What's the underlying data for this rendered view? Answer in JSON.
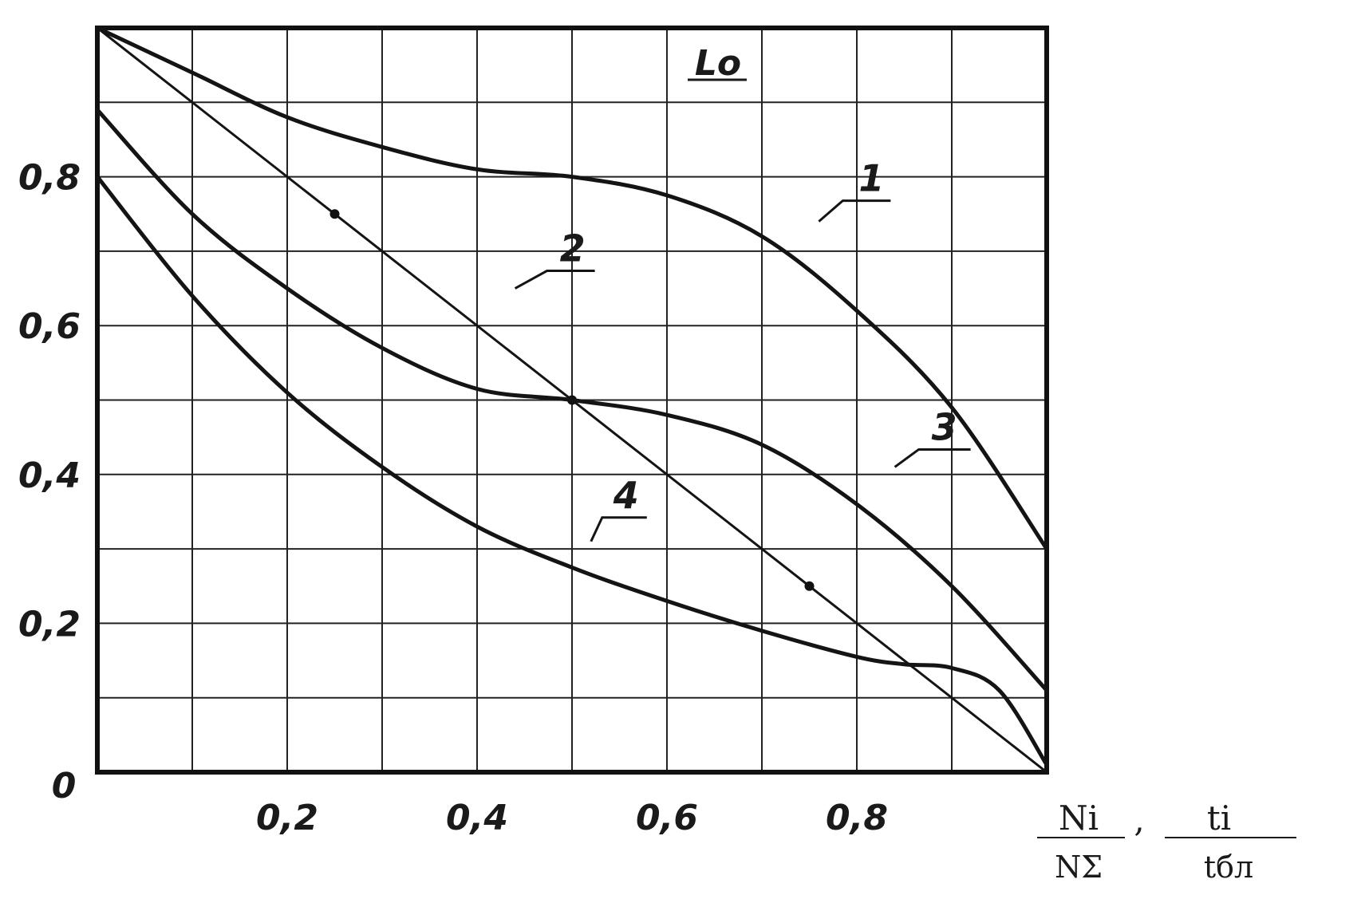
{
  "chart_data": {
    "type": "line",
    "title": "",
    "corner_label": "Lo",
    "xlabel": {
      "numerator_1": "Ni",
      "denominator_1": "NΣ",
      "separator": ",",
      "numerator_2": "ti",
      "denominator_2": "tбл"
    },
    "ylabel": "",
    "xlim": [
      0,
      1
    ],
    "ylim": [
      0,
      1
    ],
    "grid": true,
    "x_ticks": [
      {
        "value": 0.2,
        "label": "0,2"
      },
      {
        "value": 0.4,
        "label": "0,4"
      },
      {
        "value": 0.6,
        "label": "0,6"
      },
      {
        "value": 0.8,
        "label": "0,8"
      }
    ],
    "y_ticks": [
      {
        "value": 0,
        "label": "0"
      },
      {
        "value": 0.2,
        "label": "0,2"
      },
      {
        "value": 0.4,
        "label": "0,4"
      },
      {
        "value": 0.6,
        "label": "0,6"
      },
      {
        "value": 0.8,
        "label": "0,8"
      }
    ],
    "series": [
      {
        "name": "1",
        "x": [
          0,
          0.1,
          0.2,
          0.3,
          0.4,
          0.5,
          0.6,
          0.7,
          0.8,
          0.9,
          1.0
        ],
        "y": [
          1.0,
          0.94,
          0.88,
          0.84,
          0.81,
          0.8,
          0.775,
          0.72,
          0.62,
          0.49,
          0.3
        ],
        "label_at": {
          "x": 0.76,
          "y": 0.74
        }
      },
      {
        "name": "2",
        "x": [
          0,
          0.25,
          0.5,
          0.75,
          1.0
        ],
        "y": [
          1.0,
          0.75,
          0.5,
          0.25,
          0.0
        ],
        "markers": [
          {
            "x": 0.25,
            "y": 0.75
          },
          {
            "x": 0.5,
            "y": 0.5
          },
          {
            "x": 0.75,
            "y": 0.25
          }
        ],
        "label_at": {
          "x": 0.44,
          "y": 0.65
        }
      },
      {
        "name": "3",
        "x": [
          0,
          0.1,
          0.2,
          0.3,
          0.4,
          0.5,
          0.6,
          0.7,
          0.8,
          0.9,
          1.0
        ],
        "y": [
          0.89,
          0.75,
          0.65,
          0.57,
          0.515,
          0.5,
          0.48,
          0.44,
          0.36,
          0.25,
          0.11
        ],
        "label_at": {
          "x": 0.84,
          "y": 0.41
        }
      },
      {
        "name": "4",
        "x": [
          0,
          0.1,
          0.2,
          0.3,
          0.4,
          0.5,
          0.6,
          0.7,
          0.8,
          0.85,
          0.9,
          0.95,
          1.0
        ],
        "y": [
          0.8,
          0.64,
          0.51,
          0.41,
          0.33,
          0.275,
          0.23,
          0.19,
          0.155,
          0.145,
          0.14,
          0.11,
          0.01
        ],
        "label_at": {
          "x": 0.52,
          "y": 0.31
        }
      }
    ]
  }
}
